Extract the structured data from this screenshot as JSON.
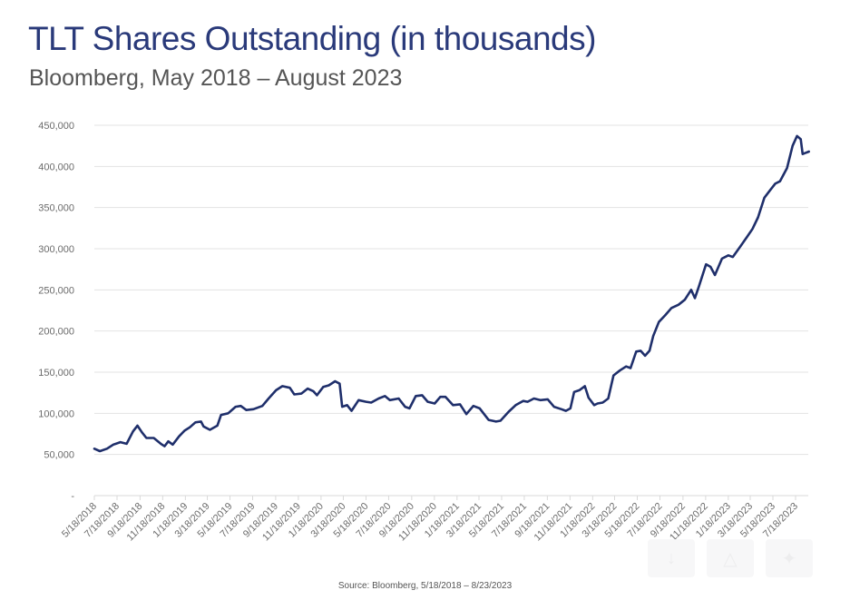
{
  "header": {
    "title": "TLT Shares Outstanding (in thousands)",
    "subtitle": "Bloomberg, May 2018 – August 2023"
  },
  "footer": {
    "source": "Source: Bloomberg, 5/18/2018 – 8/23/2023"
  },
  "overlay_buttons": [
    {
      "name": "download-icon",
      "glyph": "↓"
    },
    {
      "name": "drive-icon",
      "glyph": "△"
    },
    {
      "name": "share-icon",
      "glyph": "✦"
    }
  ],
  "colors": {
    "line": "#1f2f6b",
    "grid": "#e3e3e3",
    "title": "#2a3a7a"
  },
  "chart_data": {
    "type": "line",
    "title": "TLT Shares Outstanding (in thousands)",
    "subtitle": "Bloomberg, May 2018 – August 2023",
    "xlabel": "",
    "ylabel": "",
    "ylim": [
      0,
      450000
    ],
    "yticks": [
      0,
      50000,
      100000,
      150000,
      200000,
      250000,
      300000,
      350000,
      400000,
      450000
    ],
    "ytick_labels": [
      "-",
      "50,000",
      "100,000",
      "150,000",
      "200,000",
      "250,000",
      "300,000",
      "350,000",
      "400,000",
      "450,000"
    ],
    "xlim": [
      "2018-05-18",
      "2023-08-23"
    ],
    "xtick_labels": [
      "5/18/2018",
      "7/18/2018",
      "9/18/2018",
      "11/18/2018",
      "1/18/2019",
      "3/18/2019",
      "5/18/2019",
      "7/18/2019",
      "9/18/2019",
      "11/18/2019",
      "1/18/2020",
      "3/18/2020",
      "5/18/2020",
      "7/18/2020",
      "9/18/2020",
      "11/18/2020",
      "1/18/2021",
      "3/18/2021",
      "5/18/2021",
      "7/18/2021",
      "9/18/2021",
      "11/18/2021",
      "1/18/2022",
      "3/18/2022",
      "5/18/2022",
      "7/18/2022",
      "9/18/2022",
      "11/18/2022",
      "1/18/2023",
      "3/18/2023",
      "5/18/2023",
      "7/18/2023"
    ],
    "grid": true,
    "legend": "none",
    "source": "Source: Bloomberg, 5/18/2018 – 8/23/2023",
    "series": [
      {
        "name": "TLT Shares Outstanding",
        "x": [
          "2018-05-18",
          "2018-06-02",
          "2018-06-21",
          "2018-07-08",
          "2018-07-27",
          "2018-08-13",
          "2018-08-30",
          "2018-09-11",
          "2018-09-23",
          "2018-10-05",
          "2018-10-25",
          "2018-11-13",
          "2018-11-23",
          "2018-12-03",
          "2018-12-15",
          "2019-01-01",
          "2019-01-16",
          "2019-01-30",
          "2019-02-14",
          "2019-03-01",
          "2019-03-08",
          "2019-03-25",
          "2019-04-14",
          "2019-04-24",
          "2019-05-13",
          "2019-06-02",
          "2019-06-16",
          "2019-07-01",
          "2019-07-20",
          "2019-08-13",
          "2019-08-30",
          "2019-09-19",
          "2019-10-06",
          "2019-10-26",
          "2019-11-07",
          "2019-11-26",
          "2019-12-13",
          "2019-12-28",
          "2020-01-07",
          "2020-01-24",
          "2020-02-08",
          "2020-02-25",
          "2020-03-08",
          "2020-03-15",
          "2020-03-28",
          "2020-04-09",
          "2020-04-28",
          "2020-05-18",
          "2020-06-01",
          "2020-06-21",
          "2020-07-08",
          "2020-07-21",
          "2020-08-14",
          "2020-08-31",
          "2020-09-12",
          "2020-09-29",
          "2020-10-16",
          "2020-10-31",
          "2020-11-19",
          "2020-12-04",
          "2020-12-18",
          "2021-01-07",
          "2021-01-26",
          "2021-02-12",
          "2021-03-03",
          "2021-03-20",
          "2021-04-13",
          "2021-05-03",
          "2021-05-15",
          "2021-06-06",
          "2021-06-25",
          "2021-07-15",
          "2021-07-27",
          "2021-08-13",
          "2021-08-30",
          "2021-09-19",
          "2021-10-06",
          "2021-10-26",
          "2021-11-07",
          "2021-11-19",
          "2021-11-29",
          "2021-12-13",
          "2021-12-28",
          "2022-01-07",
          "2022-01-22",
          "2022-01-31",
          "2022-02-14",
          "2022-02-29",
          "2022-03-15",
          "2022-04-01",
          "2022-04-18",
          "2022-04-30",
          "2022-05-15",
          "2022-05-27",
          "2022-06-08",
          "2022-06-20",
          "2022-06-30",
          "2022-07-15",
          "2022-08-01",
          "2022-08-18",
          "2022-09-06",
          "2022-09-23",
          "2022-10-10",
          "2022-10-20",
          "2022-10-30",
          "2022-11-19",
          "2022-12-01",
          "2022-12-13",
          "2023-01-01",
          "2023-01-18",
          "2023-01-30",
          "2023-02-18",
          "2023-03-09",
          "2023-03-24",
          "2023-04-08",
          "2023-04-25",
          "2023-05-12",
          "2023-05-24",
          "2023-06-06",
          "2023-06-25",
          "2023-07-10",
          "2023-07-22",
          "2023-08-01",
          "2023-08-06",
          "2023-08-23"
        ],
        "values": [
          57000,
          54000,
          57000,
          62000,
          65000,
          63000,
          78000,
          85000,
          77000,
          70000,
          70000,
          63000,
          60000,
          66000,
          62000,
          72000,
          79000,
          83000,
          89000,
          90000,
          84000,
          80000,
          85000,
          98000,
          100000,
          108000,
          109000,
          104000,
          105000,
          109000,
          118000,
          128000,
          133000,
          131000,
          123000,
          124000,
          130000,
          127000,
          122000,
          132000,
          134000,
          139000,
          136000,
          108000,
          110000,
          103000,
          116000,
          114000,
          113000,
          118000,
          121000,
          116000,
          118000,
          108000,
          106000,
          121000,
          122000,
          114000,
          112000,
          120000,
          120000,
          110000,
          111000,
          99000,
          109000,
          106000,
          92000,
          90000,
          91000,
          102000,
          110000,
          115000,
          114000,
          118000,
          116000,
          117000,
          108000,
          105000,
          103000,
          106000,
          126000,
          128000,
          133000,
          119000,
          110000,
          112000,
          113000,
          118000,
          146000,
          152000,
          157000,
          155000,
          175000,
          176000,
          170000,
          176000,
          194000,
          211000,
          219000,
          228000,
          232000,
          238000,
          250000,
          240000,
          253000,
          281000,
          278000,
          268000,
          288000,
          292000,
          290000,
          302000,
          314000,
          324000,
          338000,
          362000,
          372000,
          379000,
          382000,
          398000,
          425000,
          437000,
          433000,
          415000,
          418000
        ]
      }
    ]
  }
}
